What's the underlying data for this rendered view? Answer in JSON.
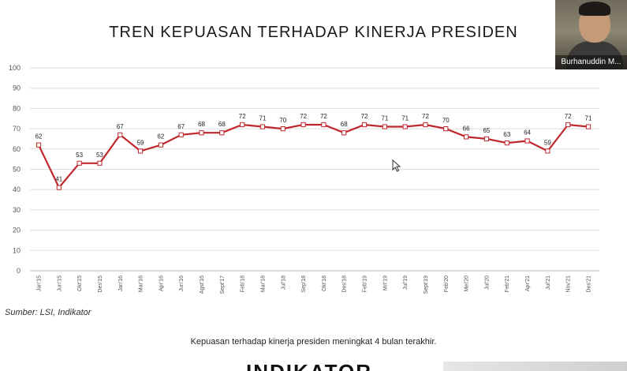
{
  "title": "TREN KEPUASAN TERHADAP KINERJA PRESIDEN",
  "source": "Sumber: LSI, Indikator",
  "caption": "Kepuasan terhadap kinerja presiden meningkat 4 bulan terakhir.",
  "logo_text": "INDIKATOR",
  "video": {
    "name": "Burhanuddin M..."
  },
  "colors": {
    "line": "#c0272d",
    "grid": "#dddddd"
  },
  "chart_data": {
    "type": "line",
    "title": "TREN KEPUASAN TERHADAP KINERJA PRESIDEN",
    "ylim": [
      0,
      100
    ],
    "yticks": [
      0,
      10,
      20,
      30,
      40,
      50,
      60,
      70,
      80,
      90,
      100
    ],
    "grid": true,
    "categories": [
      "Jan'15",
      "Jun'15",
      "Okt'15",
      "Des'15",
      "Jan'16",
      "Mar'16",
      "Apr'16",
      "Jun'16",
      "Agst'16",
      "Sept'17",
      "Feb'18",
      "Mar'18",
      "Jul'18",
      "Sep'18",
      "Okt'18",
      "Des'18",
      "Feb'19",
      "Mrt'19",
      "Jul'19",
      "Sept'19",
      "Feb'20",
      "Mei'20",
      "Jul'20",
      "Feb'21",
      "Apr'21",
      "Jul'21",
      "Nov'21",
      "Des'21"
    ],
    "series": [
      {
        "values": [
          62,
          41,
          53,
          53,
          67,
          59,
          62,
          67,
          68,
          68,
          72,
          71,
          70,
          72,
          72,
          68,
          72,
          71,
          71,
          72,
          70,
          66,
          65,
          63,
          64,
          59,
          72,
          71
        ]
      }
    ]
  }
}
